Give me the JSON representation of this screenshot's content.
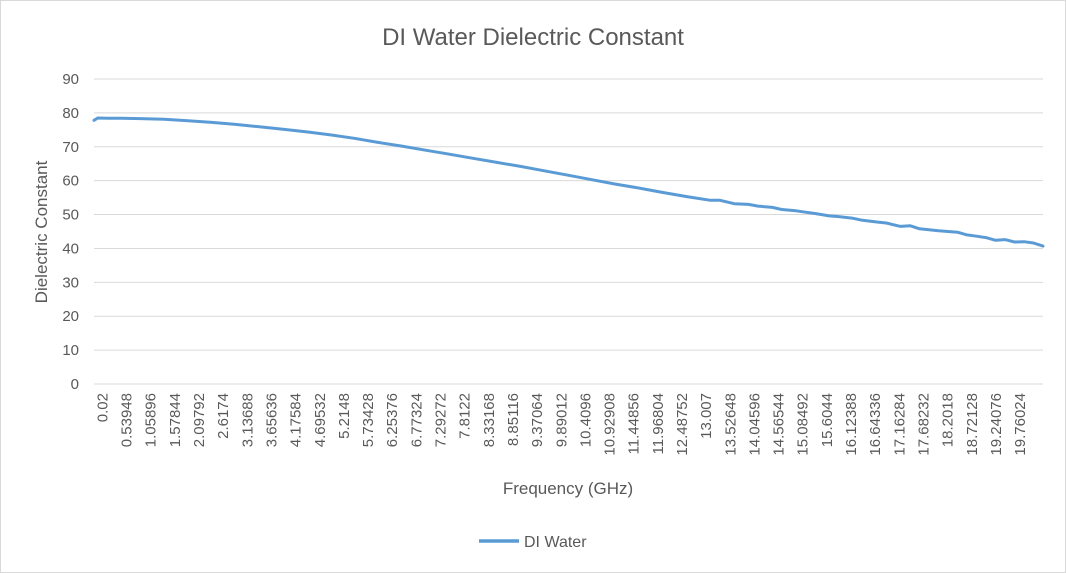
{
  "chart_data": {
    "type": "line",
    "title": "DI Water Dielectric Constant",
    "xlabel": "Frequency (GHz)",
    "ylabel": "Dielectric Constant",
    "ylim": [
      0,
      90
    ],
    "yticks": [
      0,
      10,
      20,
      30,
      40,
      50,
      60,
      70,
      80,
      90
    ],
    "xlim": [
      0.02,
      20.0
    ],
    "xticks": [
      "0.02",
      "0.53948",
      "1.05896",
      "1.57844",
      "2.09792",
      "2.6174",
      "3.13688",
      "3.65636",
      "4.17584",
      "4.69532",
      "5.2148",
      "5.73428",
      "6.25376",
      "6.77324",
      "7.29272",
      "7.8122",
      "8.33168",
      "8.85116",
      "9.37064",
      "9.89012",
      "10.4096",
      "10.92908",
      "11.44856",
      "11.96804",
      "12.48752",
      "13.007",
      "13.52648",
      "14.04596",
      "14.56544",
      "15.08492",
      "15.6044",
      "16.12388",
      "16.64336",
      "17.16284",
      "17.68232",
      "18.2018",
      "18.72128",
      "19.24076",
      "19.76024"
    ],
    "grid": true,
    "legend_position": "bottom",
    "colors": {
      "series": "#5b9bd5",
      "grid": "#d9d9d9",
      "text": "#595959"
    },
    "series": [
      {
        "name": "DI Water",
        "x": [
          0.02,
          0.1,
          0.3,
          0.6,
          1.0,
          1.5,
          2.0,
          2.5,
          3.0,
          3.5,
          4.0,
          4.5,
          5.0,
          5.5,
          6.0,
          6.5,
          7.0,
          7.5,
          8.0,
          8.5,
          9.0,
          9.5,
          10.0,
          10.5,
          11.0,
          11.5,
          12.0,
          12.5,
          13.0,
          13.2,
          13.5,
          13.8,
          14.0,
          14.3,
          14.5,
          14.8,
          15.0,
          15.2,
          15.5,
          15.7,
          16.0,
          16.2,
          16.5,
          16.7,
          17.0,
          17.2,
          17.4,
          17.6,
          17.8,
          18.0,
          18.2,
          18.4,
          18.6,
          18.8,
          19.0,
          19.2,
          19.4,
          19.6,
          19.8,
          20.0
        ],
        "y": [
          77.8,
          78.5,
          78.4,
          78.4,
          78.3,
          78.1,
          77.7,
          77.2,
          76.6,
          75.9,
          75.2,
          74.4,
          73.5,
          72.5,
          71.3,
          70.2,
          69.0,
          67.8,
          66.6,
          65.4,
          64.2,
          62.9,
          61.6,
          60.3,
          59.0,
          57.8,
          56.5,
          55.3,
          54.2,
          54.2,
          53.2,
          53.0,
          52.5,
          52.1,
          51.5,
          51.1,
          50.7,
          50.3,
          49.6,
          49.4,
          48.9,
          48.3,
          47.8,
          47.5,
          46.5,
          46.7,
          45.8,
          45.5,
          45.2,
          45.0,
          44.8,
          44.0,
          43.6,
          43.2,
          42.4,
          42.6,
          41.9,
          42.0,
          41.6,
          40.7
        ]
      }
    ]
  }
}
